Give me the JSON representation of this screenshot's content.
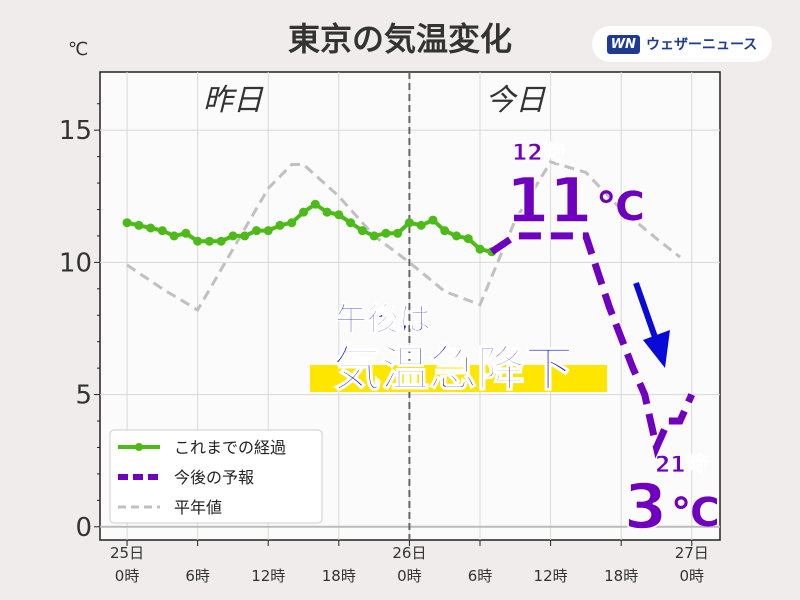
{
  "title": "東京の気温変化",
  "logo": {
    "mark": "WN",
    "text": "ウェザーニュース"
  },
  "unit_label": "℃",
  "annotations": {
    "yesterday": "昨日",
    "today": "今日",
    "peak_time": "12時",
    "peak_value": "11",
    "peak_unit": "℃",
    "low_time": "21時",
    "low_value": "3",
    "low_unit": "℃",
    "headline1": "午後は",
    "headline2": "気温急降下"
  },
  "colors": {
    "observed": "#4cbb17",
    "forecast": "#7000c0",
    "normal": "#c0c0c0",
    "headline": "#0a0ad8",
    "highlight": "#ffe600"
  },
  "chart_data": {
    "type": "line",
    "title": "東京の気温変化",
    "ylabel": "℃",
    "xlim": [
      -2.3,
      50.4
    ],
    "ylim": [
      -0.5,
      17.2
    ],
    "yticks": [
      0,
      5,
      10,
      15
    ],
    "xticks": [
      {
        "h": 0,
        "l1": "25日",
        "l2": "0時"
      },
      {
        "h": 6,
        "l1": "",
        "l2": "6時"
      },
      {
        "h": 12,
        "l1": "",
        "l2": "12時"
      },
      {
        "h": 18,
        "l1": "",
        "l2": "18時"
      },
      {
        "h": 24,
        "l1": "26日",
        "l2": "0時"
      },
      {
        "h": 30,
        "l1": "",
        "l2": "6時"
      },
      {
        "h": 36,
        "l1": "",
        "l2": "12時"
      },
      {
        "h": 42,
        "l1": "",
        "l2": "18時"
      },
      {
        "h": 48,
        "l1": "27日",
        "l2": "0時"
      }
    ],
    "series": [
      {
        "name": "これまでの経過",
        "x": [
          0,
          1,
          2,
          3,
          4,
          5,
          6,
          7,
          8,
          9,
          10,
          11,
          12,
          13,
          14,
          15,
          16,
          17,
          18,
          19,
          20,
          21,
          22,
          23,
          24,
          25,
          26,
          27,
          28,
          29,
          30,
          31
        ],
        "y": [
          11.5,
          11.4,
          11.3,
          11.2,
          11.0,
          11.1,
          10.8,
          10.8,
          10.8,
          11.0,
          11.0,
          11.2,
          11.2,
          11.4,
          11.5,
          11.9,
          12.2,
          11.9,
          11.8,
          11.5,
          11.2,
          11.0,
          11.1,
          11.1,
          11.5,
          11.4,
          11.6,
          11.2,
          11.0,
          10.9,
          10.5,
          10.4
        ]
      },
      {
        "name": "今後の予報",
        "x": [
          31,
          33,
          39,
          41,
          43,
          44,
          45,
          46,
          47,
          48
        ],
        "y": [
          10.4,
          11.0,
          11.0,
          8.3,
          6.0,
          5.0,
          3.0,
          4.0,
          4.0,
          5.0
        ]
      },
      {
        "name": "平年値",
        "x": [
          0,
          3,
          6,
          9,
          12,
          14,
          15,
          18,
          21,
          24,
          27,
          30,
          33,
          36,
          39,
          42,
          45,
          47
        ],
        "y": [
          9.9,
          9.0,
          8.2,
          10.5,
          12.8,
          13.7,
          13.7,
          12.5,
          11.0,
          10.0,
          8.9,
          8.4,
          11.6,
          13.8,
          13.4,
          12.0,
          10.9,
          10.2
        ]
      }
    ],
    "legend": "bottom-left",
    "grid": true
  }
}
